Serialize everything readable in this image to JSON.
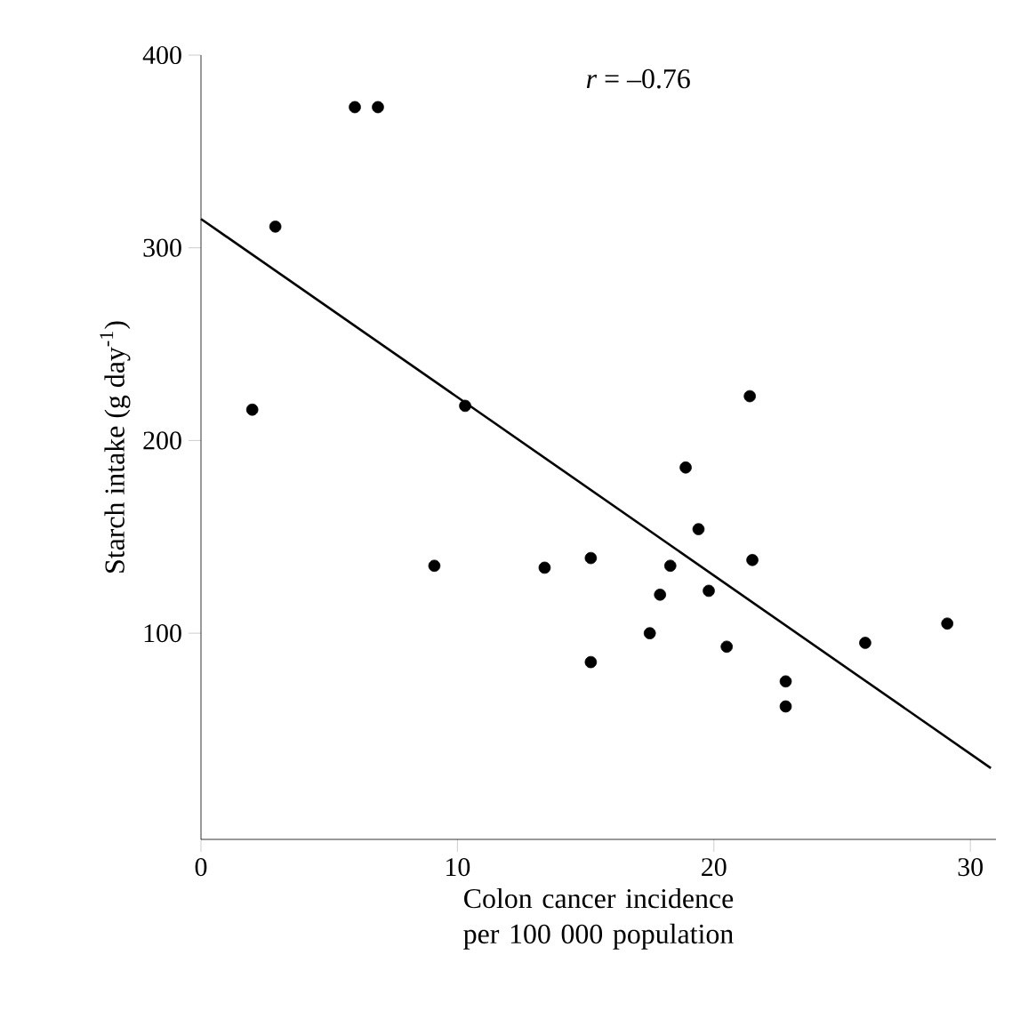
{
  "chart_data": {
    "type": "scatter",
    "xlabel": "Colon cancer incidence per 100 000 population",
    "ylabel": "Starch intake (g day$^{-1}$)",
    "annotations": [
      "*r* = –0.76"
    ],
    "xlim": [
      0,
      31
    ],
    "ylim": [
      -7,
      400
    ],
    "xticks": [
      0,
      10,
      20,
      30
    ],
    "yticks": [
      100,
      200,
      300,
      400
    ],
    "series": [
      {
        "marker": "circle",
        "color": "#000000",
        "x": [
          6.0,
          6.9,
          2.9,
          2.0,
          10.3,
          9.1,
          13.4,
          15.2,
          15.2,
          21.4,
          18.9,
          19.4,
          21.5,
          18.3,
          17.9,
          19.8,
          17.5,
          20.5,
          22.8,
          22.8,
          25.9,
          29.1
        ],
        "values": [
          373,
          373,
          311,
          216,
          218,
          135,
          134,
          139,
          85,
          223,
          186,
          154,
          138,
          135,
          120,
          122,
          100,
          93,
          75,
          62,
          95,
          105
        ]
      },
      {
        "type": "line",
        "marker": "none",
        "color": "#000000",
        "x": [
          0,
          30.8
        ],
        "values": [
          315,
          30
        ]
      }
    ]
  }
}
